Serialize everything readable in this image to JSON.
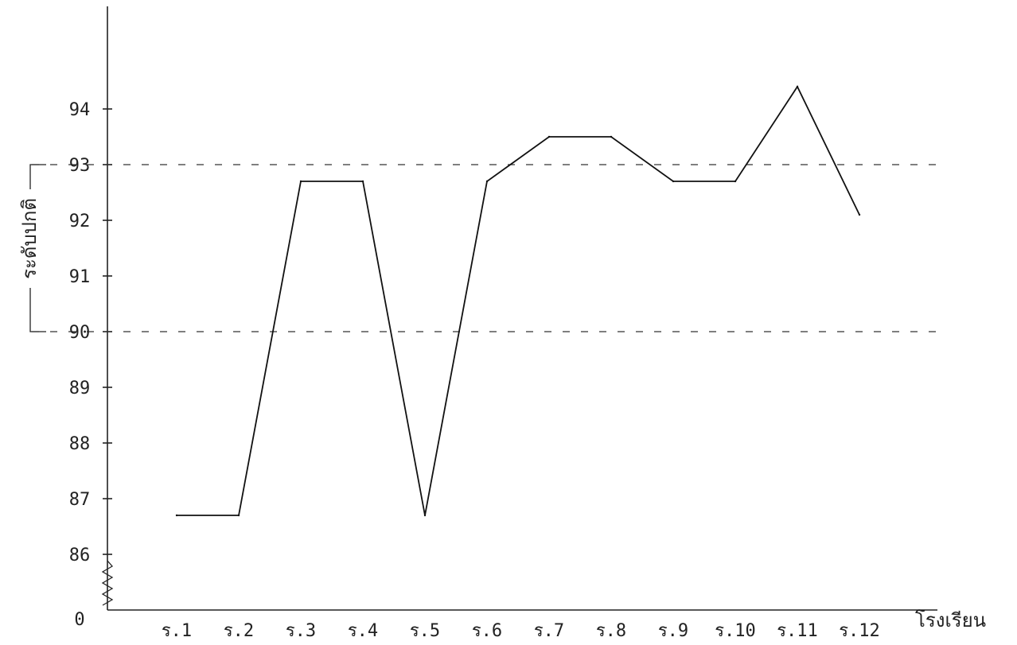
{
  "chart_data": {
    "type": "line",
    "title": "",
    "xlabel": "โรงเรียน",
    "ylabel": "ระดับปกติ",
    "categories": [
      "ร.1",
      "ร.2",
      "ร.3",
      "ร.4",
      "ร.5",
      "ร.6",
      "ร.7",
      "ร.8",
      "ร.9",
      "ร.10",
      "ร.11",
      "ร.12"
    ],
    "series": [
      {
        "values": [
          86.7,
          86.7,
          92.7,
          92.7,
          86.7,
          92.7,
          93.5,
          93.5,
          92.7,
          92.7,
          94.4,
          92.1
        ]
      }
    ],
    "y_ticks": [
      86,
      87,
      88,
      89,
      90,
      91,
      92,
      93,
      94
    ],
    "y_origin_label": "0",
    "ylim": [
      86,
      94.5
    ],
    "axis_break": true,
    "reference_lines": [
      90,
      93
    ],
    "normal_range_bracket": [
      90,
      93
    ],
    "grid": false,
    "legend": "none"
  }
}
